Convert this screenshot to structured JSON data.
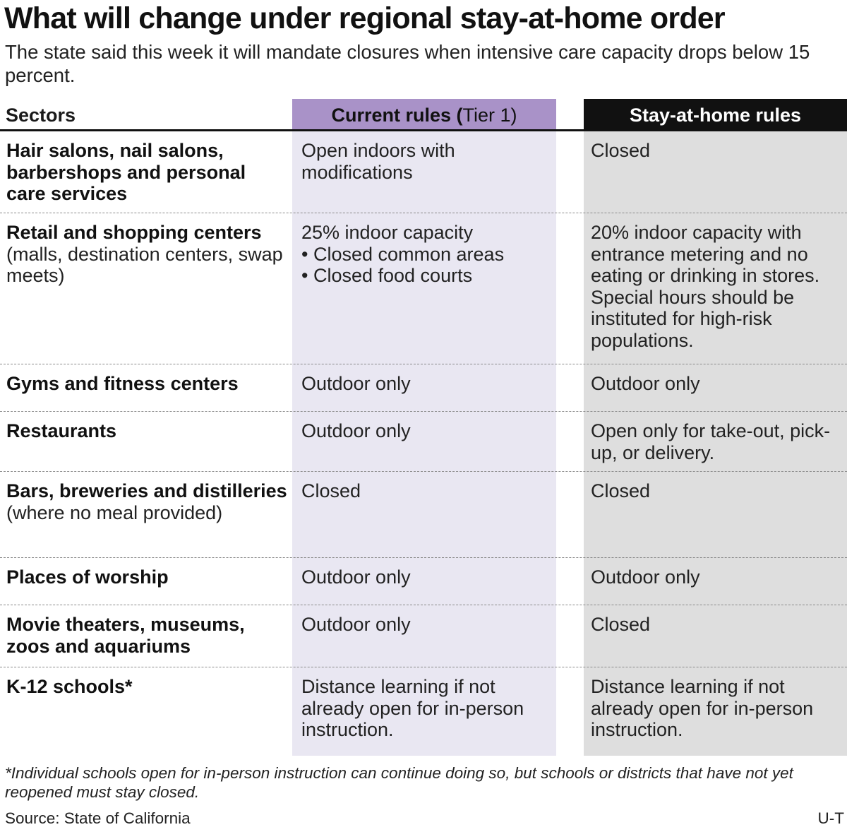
{
  "title": "What will change under regional stay-at-home order",
  "subtitle": "The state said this week it will mandate closures when intensive care capacity drops below 15 percent.",
  "headers": {
    "sector": "Sectors",
    "current_bold": "Current rules (",
    "current_regular": "Tier 1)",
    "stay": "Stay-at-home rules"
  },
  "colors": {
    "current_header": "#a992c8",
    "current_bg": "#e9e7f2",
    "stay_header": "#111111",
    "stay_bg": "#dedede"
  },
  "rows": [
    {
      "sector_bold": "Hair salons, nail salons, barbershops and personal care services",
      "sector_regular": "",
      "current": "Open indoors with modifications",
      "current_bullets": [],
      "stay": "Closed"
    },
    {
      "sector_bold": "Retail and shopping centers",
      "sector_regular": " (malls, destination centers, swap meets)",
      "current": "25% indoor capacity",
      "current_bullets": [
        "•  Closed common areas",
        "•  Closed food courts"
      ],
      "stay": "20% indoor capacity with entrance metering and no eating or drinking in stores. Special hours should be instituted for high-risk populations."
    },
    {
      "sector_bold": "Gyms and fitness centers",
      "sector_regular": "",
      "current": "Outdoor only",
      "current_bullets": [],
      "stay": "Outdoor only"
    },
    {
      "sector_bold": "Restaurants",
      "sector_regular": "",
      "current": "Outdoor only",
      "current_bullets": [],
      "stay": "Open only for take-out, pick-up, or delivery."
    },
    {
      "sector_bold": "Bars, breweries and distilleries",
      "sector_regular": "(where no meal provided)",
      "current": "Closed",
      "current_bullets": [],
      "stay": "Closed"
    },
    {
      "sector_bold": "Places of worship",
      "sector_regular": "",
      "current": "Outdoor only",
      "current_bullets": [],
      "stay": "Outdoor only"
    },
    {
      "sector_bold": "Movie theaters, museums, zoos and aquariums",
      "sector_regular": "",
      "current": "Outdoor only",
      "current_bullets": [],
      "stay": "Closed"
    },
    {
      "sector_bold": "K-12 schools*",
      "sector_regular": "",
      "current": "Distance learning if not already open for in-person instruction.",
      "current_bullets": [],
      "stay": "Distance learning if not already open for in-person instruction."
    }
  ],
  "footnote": "*Individual schools open for in-person instruction can continue doing so, but schools or districts that have not yet reopened must stay closed.",
  "source": "Source: State of California",
  "credit": "U-T"
}
